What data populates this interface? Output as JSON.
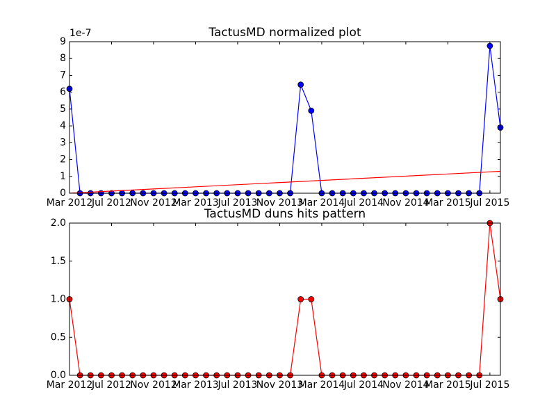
{
  "chart_data": [
    {
      "type": "line",
      "title": "TactusMD normalized plot",
      "y_offset_label": "1e-7",
      "x": [
        "2012-03",
        "2012-04",
        "2012-05",
        "2012-06",
        "2012-07",
        "2012-08",
        "2012-09",
        "2012-10",
        "2012-11",
        "2012-12",
        "2013-01",
        "2013-02",
        "2013-03",
        "2013-04",
        "2013-05",
        "2013-06",
        "2013-07",
        "2013-08",
        "2013-09",
        "2013-10",
        "2013-11",
        "2013-12",
        "2014-01",
        "2014-02",
        "2014-03",
        "2014-04",
        "2014-05",
        "2014-06",
        "2014-07",
        "2014-08",
        "2014-09",
        "2014-10",
        "2014-11",
        "2014-12",
        "2015-01",
        "2015-02",
        "2015-03",
        "2015-04",
        "2015-05",
        "2015-06",
        "2015-07",
        "2015-08"
      ],
      "series": [
        {
          "color": "#0000ff",
          "marker": true,
          "values": [
            6.2e-07,
            0,
            0,
            0,
            0,
            0,
            0,
            0,
            0,
            0,
            0,
            0,
            0,
            0,
            0,
            0,
            0,
            0,
            0,
            0,
            0,
            0,
            6.45e-07,
            4.9e-07,
            0,
            0,
            0,
            0,
            0,
            0,
            0,
            0,
            0,
            0,
            0,
            0,
            0,
            0,
            0,
            0,
            8.75e-07,
            3.9e-07
          ]
        },
        {
          "color": "#ff0000",
          "marker": false,
          "x": [
            "2012-03",
            "2015-08"
          ],
          "values": [
            0,
            1.3e-07
          ]
        }
      ],
      "xlim": [
        "2012-03",
        "2015-08"
      ],
      "xticks": [
        {
          "value": "2012-03",
          "label": "Mar 2012"
        },
        {
          "value": "2012-07",
          "label": "Jul 2012"
        },
        {
          "value": "2012-11",
          "label": "Nov 2012"
        },
        {
          "value": "2013-03",
          "label": "Mar 2013"
        },
        {
          "value": "2013-07",
          "label": "Jul 2013"
        },
        {
          "value": "2013-11",
          "label": "Nov 2013"
        },
        {
          "value": "2014-03",
          "label": "Mar 2014"
        },
        {
          "value": "2014-07",
          "label": "Jul 2014"
        },
        {
          "value": "2014-11",
          "label": "Nov 2014"
        },
        {
          "value": "2015-03",
          "label": "Mar 2015"
        },
        {
          "value": "2015-07",
          "label": "Jul 2015"
        }
      ],
      "ylim": [
        0,
        9e-07
      ],
      "yticks": [
        0,
        {
          "value": 1e-07,
          "label": "1"
        },
        {
          "value": 2e-07,
          "label": "2"
        },
        {
          "value": 3e-07,
          "label": "3"
        },
        {
          "value": 4e-07,
          "label": "4"
        },
        {
          "value": 5e-07,
          "label": "5"
        },
        {
          "value": 6e-07,
          "label": "6"
        },
        {
          "value": 7e-07,
          "label": "7"
        },
        {
          "value": 8e-07,
          "label": "8"
        },
        {
          "value": 9e-07,
          "label": "9"
        }
      ]
    },
    {
      "type": "line",
      "title": "TactusMD duns hits pattern",
      "x": [
        "2012-03",
        "2012-04",
        "2012-05",
        "2012-06",
        "2012-07",
        "2012-08",
        "2012-09",
        "2012-10",
        "2012-11",
        "2012-12",
        "2013-01",
        "2013-02",
        "2013-03",
        "2013-04",
        "2013-05",
        "2013-06",
        "2013-07",
        "2013-08",
        "2013-09",
        "2013-10",
        "2013-11",
        "2013-12",
        "2014-01",
        "2014-02",
        "2014-03",
        "2014-04",
        "2014-05",
        "2014-06",
        "2014-07",
        "2014-08",
        "2014-09",
        "2014-10",
        "2014-11",
        "2014-12",
        "2015-01",
        "2015-02",
        "2015-03",
        "2015-04",
        "2015-05",
        "2015-06",
        "2015-07",
        "2015-08"
      ],
      "series": [
        {
          "color": "#ff0000",
          "marker": true,
          "values": [
            1,
            0,
            0,
            0,
            0,
            0,
            0,
            0,
            0,
            0,
            0,
            0,
            0,
            0,
            0,
            0,
            0,
            0,
            0,
            0,
            0,
            0,
            1,
            1,
            0,
            0,
            0,
            0,
            0,
            0,
            0,
            0,
            0,
            0,
            0,
            0,
            0,
            0,
            0,
            0,
            2,
            1
          ]
        }
      ],
      "xlim": [
        "2012-03",
        "2015-08"
      ],
      "xticks": [
        {
          "value": "2012-03",
          "label": "Mar 2012"
        },
        {
          "value": "2012-07",
          "label": "Jul 2012"
        },
        {
          "value": "2012-11",
          "label": "Nov 2012"
        },
        {
          "value": "2013-03",
          "label": "Mar 2013"
        },
        {
          "value": "2013-07",
          "label": "Jul 2013"
        },
        {
          "value": "2013-11",
          "label": "Nov 2013"
        },
        {
          "value": "2014-03",
          "label": "Mar 2014"
        },
        {
          "value": "2014-07",
          "label": "Jul 2014"
        },
        {
          "value": "2014-11",
          "label": "Nov 2014"
        },
        {
          "value": "2015-03",
          "label": "Mar 2015"
        },
        {
          "value": "2015-07",
          "label": "Jul 2015"
        }
      ],
      "ylim": [
        0,
        2
      ],
      "yticks": [
        {
          "value": 0,
          "label": "0.0"
        },
        {
          "value": 0.5,
          "label": "0.5"
        },
        {
          "value": 1,
          "label": "1.0"
        },
        {
          "value": 1.5,
          "label": "1.5"
        },
        {
          "value": 2,
          "label": "2.0"
        }
      ]
    }
  ]
}
